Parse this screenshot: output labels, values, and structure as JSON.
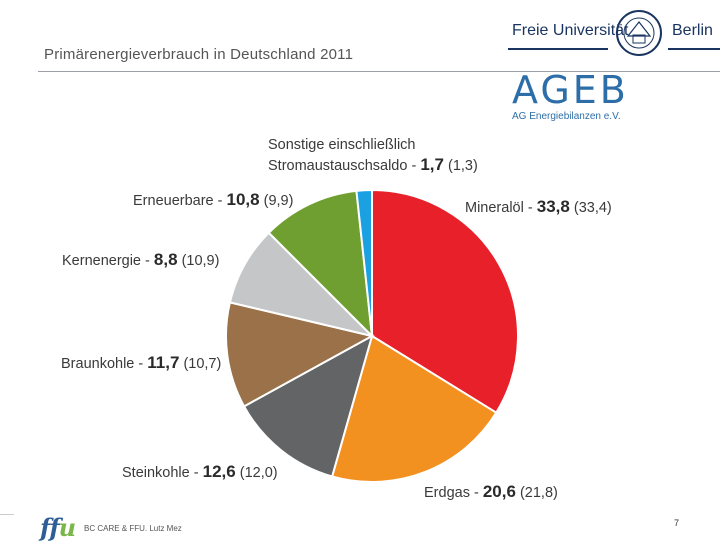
{
  "slide": {
    "title": "Primärenergieverbrauch in Deutschland 2011",
    "page_number": "7",
    "footer_text": "BC CARE & FFU. Lutz Mez",
    "footer_logo_main": "ff",
    "footer_logo_accent": "u"
  },
  "logos": {
    "fu_left": "Freie Universität",
    "fu_right": "Berlin",
    "ageb_word": "AGEB",
    "ageb_sub": "AG Energiebilanzen e.V."
  },
  "chart_data": {
    "type": "pie",
    "title": "Primärenergieverbrauch in Deutschland 2011",
    "unit": "%",
    "start": "12 o'clock, clockwise",
    "slices": [
      {
        "name": "Mineralöl",
        "value": 33.8,
        "prev": "(33,4)",
        "value_label": "33,8",
        "color": "#e8202a"
      },
      {
        "name": "Erdgas",
        "value": 20.6,
        "prev": "(21,8)",
        "value_label": "20,6",
        "color": "#f39120"
      },
      {
        "name": "Steinkohle",
        "value": 12.6,
        "prev": "(12,0)",
        "value_label": "12,6",
        "color": "#636466"
      },
      {
        "name": "Braunkohle",
        "value": 11.7,
        "prev": "(10,7)",
        "value_label": "11,7",
        "color": "#9a7148"
      },
      {
        "name": "Kernenergie",
        "value": 8.8,
        "prev": "(10,9)",
        "value_label": "8,8",
        "color": "#c5c6c8"
      },
      {
        "name": "Erneuerbare",
        "value": 10.8,
        "prev": "(9,9)",
        "value_label": "10,8",
        "color": "#6e9f30"
      },
      {
        "name": "Stromaustauschsaldo",
        "name_line1": "Sonstige einschließlich",
        "value": 1.7,
        "prev": "(1,3)",
        "value_label": "1,7",
        "color": "#1ba1e2"
      }
    ]
  }
}
